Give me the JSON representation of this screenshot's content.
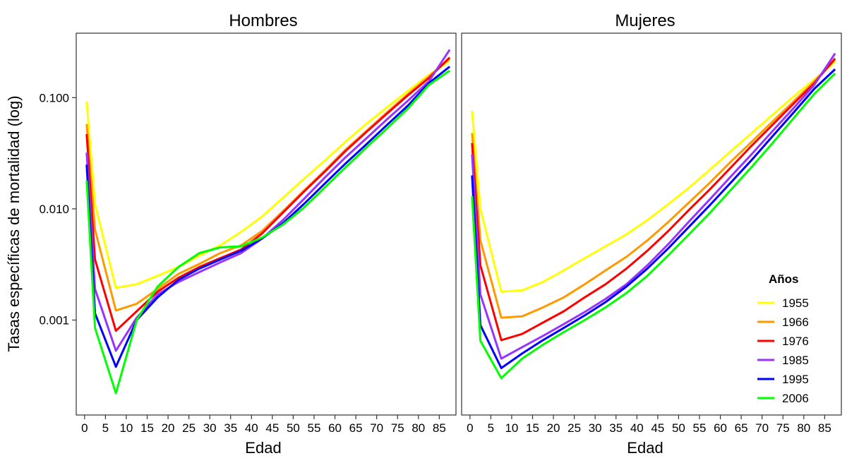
{
  "chart_data": [
    {
      "type": "line",
      "title": "Hombres",
      "xlabel": "Edad",
      "ylabel": "Tasas específicas de mortalidad (log)",
      "y_scale": "log",
      "xlim": [
        -2,
        89
      ],
      "ylim": [
        0.00014,
        0.38
      ],
      "x_ticks": [
        0,
        5,
        10,
        15,
        20,
        25,
        30,
        35,
        40,
        45,
        50,
        55,
        60,
        65,
        70,
        75,
        80,
        85
      ],
      "y_ticks": [
        0.001,
        0.01,
        0.1
      ],
      "y_tick_labels": [
        "0.001",
        "0.010",
        "0.100"
      ],
      "grid": false,
      "x": [
        0.5,
        2.5,
        7.5,
        12.5,
        17.5,
        22.5,
        27.5,
        32.5,
        37.5,
        42.5,
        47.5,
        52.5,
        57.5,
        62.5,
        67.5,
        72.5,
        77.5,
        82.5,
        87.5
      ],
      "series": [
        {
          "name": "1955",
          "color": "#ffff00",
          "values": [
            0.092,
            0.011,
            0.00195,
            0.0021,
            0.0025,
            0.003,
            0.0038,
            0.0047,
            0.0062,
            0.0085,
            0.0125,
            0.0185,
            0.027,
            0.04,
            0.058,
            0.082,
            0.115,
            0.16,
            0.215
          ]
        },
        {
          "name": "1966",
          "color": "#ff9900",
          "values": [
            0.058,
            0.0065,
            0.00122,
            0.0014,
            0.0019,
            0.0026,
            0.0032,
            0.004,
            0.0047,
            0.0063,
            0.0095,
            0.0145,
            0.022,
            0.034,
            0.05,
            0.074,
            0.108,
            0.155,
            0.225
          ]
        },
        {
          "name": "1976",
          "color": "#ff0000",
          "values": [
            0.047,
            0.0035,
            0.0008,
            0.0012,
            0.0018,
            0.0024,
            0.003,
            0.0036,
            0.0043,
            0.006,
            0.0092,
            0.0142,
            0.0215,
            0.033,
            0.049,
            0.072,
            0.105,
            0.15,
            0.23
          ]
        },
        {
          "name": "1985",
          "color": "#9933ff",
          "values": [
            0.032,
            0.0019,
            0.00053,
            0.00105,
            0.0017,
            0.0022,
            0.0027,
            0.0033,
            0.004,
            0.0054,
            0.0079,
            0.0122,
            0.019,
            0.029,
            0.043,
            0.064,
            0.094,
            0.14,
            0.27
          ]
        },
        {
          "name": "1995",
          "color": "#0000ff",
          "values": [
            0.025,
            0.00115,
            0.00038,
            0.001,
            0.0016,
            0.0023,
            0.0029,
            0.0035,
            0.0042,
            0.0054,
            0.0074,
            0.011,
            0.0168,
            0.0255,
            0.038,
            0.057,
            0.085,
            0.135,
            0.19
          ]
        },
        {
          "name": "2006",
          "color": "#00ff00",
          "values": [
            0.018,
            0.00085,
            0.00022,
            0.001,
            0.002,
            0.003,
            0.004,
            0.0045,
            0.0046,
            0.0055,
            0.0072,
            0.0102,
            0.0155,
            0.0235,
            0.0355,
            0.053,
            0.08,
            0.13,
            0.175
          ]
        }
      ]
    },
    {
      "type": "line",
      "title": "Mujeres",
      "xlabel": "Edad",
      "y_scale": "log",
      "xlim": [
        -2,
        89
      ],
      "ylim": [
        0.00014,
        0.38
      ],
      "x_ticks": [
        0,
        5,
        10,
        15,
        20,
        25,
        30,
        35,
        40,
        45,
        50,
        55,
        60,
        65,
        70,
        75,
        80,
        85
      ],
      "grid": false,
      "legend": {
        "title": "Años",
        "position": "bottom-right",
        "entries": [
          "1955",
          "1966",
          "1976",
          "1985",
          "1995",
          "2006"
        ]
      },
      "x": [
        0.5,
        2.5,
        7.5,
        12.5,
        17.5,
        22.5,
        27.5,
        32.5,
        37.5,
        42.5,
        47.5,
        52.5,
        57.5,
        62.5,
        67.5,
        72.5,
        77.5,
        82.5,
        87.5
      ],
      "series": [
        {
          "name": "1955",
          "color": "#ffff00",
          "values": [
            0.076,
            0.01,
            0.0018,
            0.00185,
            0.0022,
            0.0028,
            0.0036,
            0.0046,
            0.0059,
            0.0079,
            0.011,
            0.0155,
            0.0225,
            0.033,
            0.048,
            0.07,
            0.102,
            0.145,
            0.21
          ]
        },
        {
          "name": "1966",
          "color": "#ff9900",
          "values": [
            0.048,
            0.0052,
            0.00105,
            0.00108,
            0.0013,
            0.0016,
            0.0021,
            0.0028,
            0.0037,
            0.0052,
            0.0076,
            0.0114,
            0.0172,
            0.0265,
            0.04,
            0.061,
            0.092,
            0.14,
            0.22
          ]
        },
        {
          "name": "1976",
          "color": "#ff0000",
          "values": [
            0.039,
            0.0031,
            0.00066,
            0.00075,
            0.00095,
            0.0012,
            0.0016,
            0.0021,
            0.0029,
            0.0042,
            0.0063,
            0.0098,
            0.015,
            0.0235,
            0.037,
            0.057,
            0.088,
            0.135,
            0.225
          ]
        },
        {
          "name": "1985",
          "color": "#9933ff",
          "values": [
            0.031,
            0.0017,
            0.00045,
            0.00057,
            0.00072,
            0.00092,
            0.00118,
            0.00155,
            0.0021,
            0.0031,
            0.0048,
            0.0077,
            0.0122,
            0.0195,
            0.031,
            0.05,
            0.08,
            0.13,
            0.25
          ]
        },
        {
          "name": "1995",
          "color": "#0000ff",
          "values": [
            0.02,
            0.0009,
            0.00037,
            0.0005,
            0.00066,
            0.00085,
            0.0011,
            0.00145,
            0.002,
            0.0029,
            0.0044,
            0.0069,
            0.0108,
            0.0172,
            0.0275,
            0.045,
            0.073,
            0.12,
            0.18
          ]
        },
        {
          "name": "2006",
          "color": "#00ff00",
          "values": [
            0.013,
            0.00065,
            0.0003,
            0.00045,
            0.0006,
            0.00078,
            0.001,
            0.0013,
            0.00175,
            0.0025,
            0.0038,
            0.0059,
            0.0092,
            0.0148,
            0.0238,
            0.039,
            0.065,
            0.108,
            0.165
          ]
        }
      ]
    }
  ]
}
